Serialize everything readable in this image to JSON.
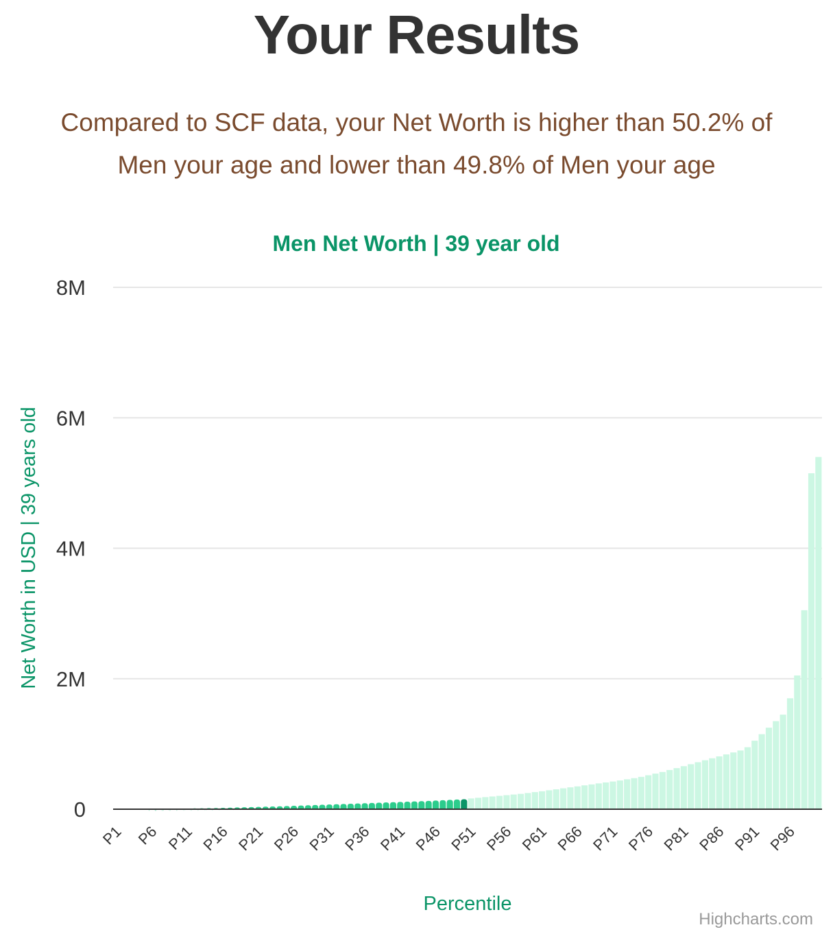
{
  "page": {
    "title": "Your Results",
    "summary_line1": "Compared to SCF data, your Net Worth is higher than 50.2% of",
    "summary_line2": "Men your age and lower than 49.8% of Men your age"
  },
  "colors": {
    "title": "#333333",
    "summary": "#7a4b2e",
    "accent": "#0a9467",
    "below_bar": "#2ccc8c",
    "highlight_bar": "#0a9467",
    "above_bar": "#ccf7e3",
    "grid": "#e6e6e6",
    "axis_line": "#333333"
  },
  "credits": "Highcharts.com",
  "chart_data": {
    "type": "bar",
    "title": "Men Net Worth | 39 year old",
    "xlabel": "Percentile",
    "ylabel": "Net Worth in USD | 39 years old",
    "ylim": [
      0,
      8000000
    ],
    "y_ticks": [
      0,
      2000000,
      4000000,
      6000000,
      8000000
    ],
    "y_tick_labels": [
      "0",
      "2M",
      "4M",
      "6M",
      "8M"
    ],
    "x_tick_labels": [
      "P1",
      "P6",
      "P11",
      "P16",
      "P21",
      "P26",
      "P31",
      "P36",
      "P41",
      "P46",
      "P51",
      "P56",
      "P61",
      "P66",
      "P71",
      "P76",
      "P81",
      "P86",
      "P91",
      "P96"
    ],
    "categories": [
      "P1",
      "P2",
      "P3",
      "P4",
      "P5",
      "P6",
      "P7",
      "P8",
      "P9",
      "P10",
      "P11",
      "P12",
      "P13",
      "P14",
      "P15",
      "P16",
      "P17",
      "P18",
      "P19",
      "P20",
      "P21",
      "P22",
      "P23",
      "P24",
      "P25",
      "P26",
      "P27",
      "P28",
      "P29",
      "P30",
      "P31",
      "P32",
      "P33",
      "P34",
      "P35",
      "P36",
      "P37",
      "P38",
      "P39",
      "P40",
      "P41",
      "P42",
      "P43",
      "P44",
      "P45",
      "P46",
      "P47",
      "P48",
      "P49",
      "P50",
      "P51",
      "P52",
      "P53",
      "P54",
      "P55",
      "P56",
      "P57",
      "P58",
      "P59",
      "P60",
      "P61",
      "P62",
      "P63",
      "P64",
      "P65",
      "P66",
      "P67",
      "P68",
      "P69",
      "P70",
      "P71",
      "P72",
      "P73",
      "P74",
      "P75",
      "P76",
      "P77",
      "P78",
      "P79",
      "P80",
      "P81",
      "P82",
      "P83",
      "P84",
      "P85",
      "P86",
      "P87",
      "P88",
      "P89",
      "P90",
      "P91",
      "P92",
      "P93",
      "P94",
      "P95",
      "P96",
      "P97",
      "P98",
      "P99",
      "P100"
    ],
    "values": [
      0,
      0,
      0,
      0,
      0,
      4000,
      6000,
      8000,
      9000,
      10000,
      11000,
      13000,
      15000,
      17000,
      19000,
      21000,
      24000,
      27000,
      30000,
      33000,
      36000,
      39000,
      42000,
      45000,
      48000,
      52000,
      56000,
      60000,
      64000,
      68000,
      72000,
      76000,
      80000,
      84000,
      88000,
      92000,
      96000,
      100000,
      104000,
      108000,
      112000,
      116000,
      120000,
      124000,
      128000,
      133000,
      138000,
      143000,
      148000,
      153000,
      165000,
      175000,
      185000,
      195000,
      205000,
      215000,
      225000,
      235000,
      248000,
      262000,
      275000,
      290000,
      305000,
      320000,
      335000,
      350000,
      365000,
      380000,
      395000,
      410000,
      425000,
      440000,
      458000,
      476000,
      495000,
      520000,
      545000,
      570000,
      600000,
      630000,
      660000,
      690000,
      720000,
      750000,
      780000,
      810000,
      840000,
      870000,
      900000,
      950000,
      1050000,
      1150000,
      1250000,
      1350000,
      1450000,
      1700000,
      2050000,
      3050000,
      5150000,
      5400000
    ],
    "highlight_index": 49,
    "legend": "none",
    "grid": true
  }
}
